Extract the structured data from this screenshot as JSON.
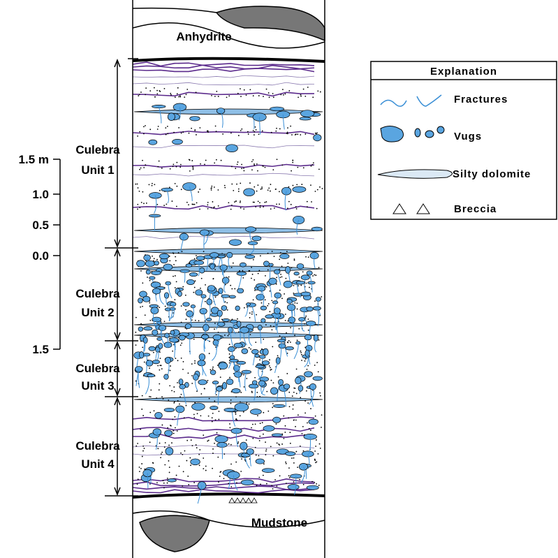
{
  "top_label": "Anhydrite",
  "bottom_label": "Mudstone",
  "units": [
    {
      "lines": [
        "Culebra",
        "Unit 1"
      ]
    },
    {
      "lines": [
        "Culebra",
        "Unit 2"
      ]
    },
    {
      "lines": [
        "Culebra",
        "Unit 3"
      ]
    },
    {
      "lines": [
        "Culebra",
        "Unit 4"
      ]
    }
  ],
  "scale_labels": [
    "1.5 m",
    "1.0",
    "0.5",
    "0.0",
    "1.5"
  ],
  "legend": {
    "title": "Explanation",
    "items": [
      "Fractures",
      "Vugs",
      "Silty dolomite",
      "Breccia"
    ]
  }
}
